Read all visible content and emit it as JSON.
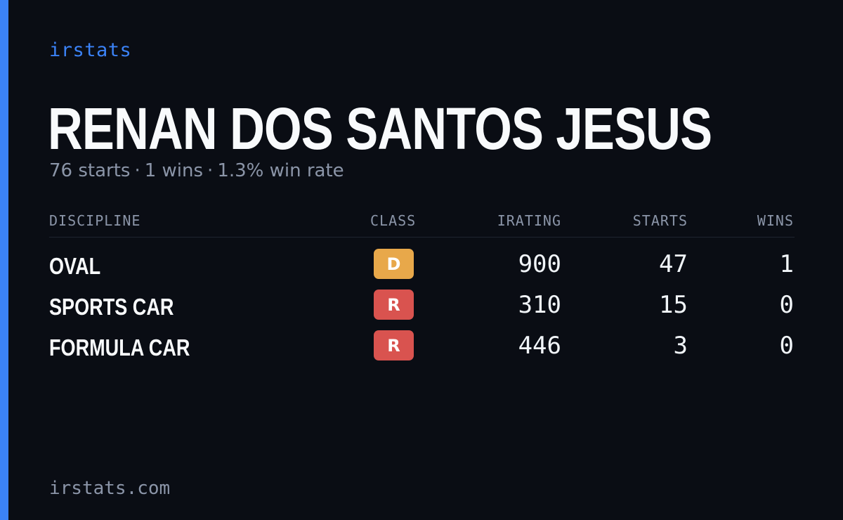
{
  "brand": "irstats",
  "driver": {
    "name": "RENAN DOS SANTOS JESUS",
    "starts_text": "76 starts",
    "wins_text": "1 wins",
    "win_rate_text": "1.3% win rate",
    "separator": "·"
  },
  "table": {
    "headers": {
      "discipline": "DISCIPLINE",
      "class": "CLASS",
      "irating": "IRATING",
      "starts": "STARTS",
      "wins": "WINS"
    },
    "rows": [
      {
        "discipline": "OVAL",
        "class": "D",
        "class_color": "#e8a84a",
        "irating": "900",
        "starts": "47",
        "wins": "1"
      },
      {
        "discipline": "SPORTS CAR",
        "class": "R",
        "class_color": "#d9534f",
        "irating": "310",
        "starts": "15",
        "wins": "0"
      },
      {
        "discipline": "FORMULA CAR",
        "class": "R",
        "class_color": "#d9534f",
        "irating": "446",
        "starts": "3",
        "wins": "0"
      }
    ]
  },
  "footer": "irstats.com",
  "colors": {
    "accent": "#3b82f6",
    "background": "#0a0d14"
  }
}
